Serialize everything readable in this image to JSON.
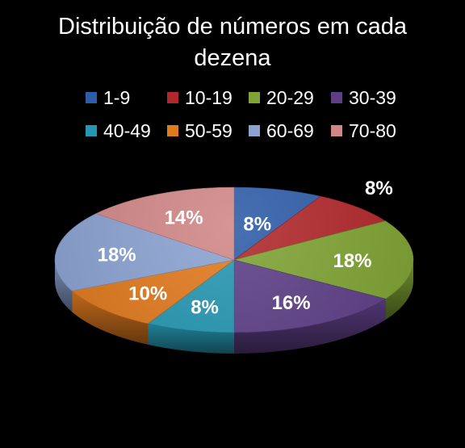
{
  "chart_data": {
    "type": "pie",
    "title": "Distribuição de números em cada dezena",
    "title_lines": [
      "Distribuição de números em cada",
      "dezena"
    ],
    "legend_placement": "top",
    "categories": [
      "1-9",
      "10-19",
      "20-29",
      "30-39",
      "40-49",
      "50-59",
      "60-69",
      "70-80"
    ],
    "values": [
      8,
      8,
      18,
      16,
      8,
      10,
      18,
      14
    ],
    "labels": [
      "8%",
      "8%",
      "18%",
      "16%",
      "8%",
      "10%",
      "18%",
      "14%"
    ],
    "colors": [
      "#2E5DA8",
      "#B0282C",
      "#7FA334",
      "#5E3F86",
      "#2596B1",
      "#E07A1F",
      "#8BA3D1",
      "#D08887"
    ]
  }
}
